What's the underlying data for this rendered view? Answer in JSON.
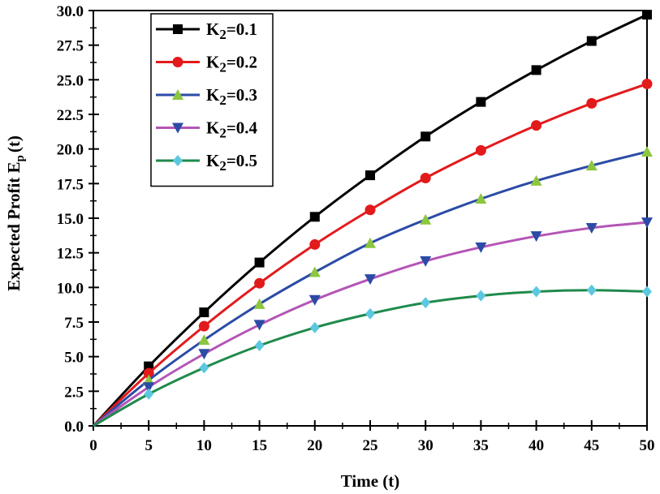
{
  "chart_data": {
    "type": "line",
    "title": "",
    "xlabel": "Time (t)",
    "ylabel_main": "Expected Profit E",
    "ylabel_sub": "p",
    "ylabel_tail": "(t)",
    "xlim": [
      0,
      50
    ],
    "ylim": [
      0,
      30
    ],
    "xticks": [
      0,
      5,
      10,
      15,
      20,
      25,
      30,
      35,
      40,
      45,
      50
    ],
    "yticks": [
      0,
      2.5,
      5,
      7.5,
      10,
      12.5,
      15,
      17.5,
      20,
      22.5,
      25,
      27.5,
      30
    ],
    "xtick_labels": [
      "0",
      "5",
      "10",
      "15",
      "20",
      "25",
      "30",
      "35",
      "40",
      "45",
      "50"
    ],
    "ytick_labels": [
      "0.0",
      "2.5",
      "5.0",
      "7.5",
      "10.0",
      "12.5",
      "15.0",
      "17.5",
      "20.0",
      "22.5",
      "25.0",
      "27.5",
      "30.0"
    ],
    "grid": false,
    "legend_position": "top-left",
    "x": [
      0,
      5,
      10,
      15,
      20,
      25,
      30,
      35,
      40,
      45,
      50
    ],
    "series": [
      {
        "name": "K2=0.1",
        "label_main": "K",
        "label_sub": "2",
        "label_tail": "=0.1",
        "color": "#000000",
        "marker": "square",
        "values": [
          0,
          4.3,
          8.2,
          11.8,
          15.1,
          18.1,
          20.9,
          23.4,
          25.7,
          27.8,
          29.7
        ]
      },
      {
        "name": "K2=0.2",
        "label_main": "K",
        "label_sub": "2",
        "label_tail": "=0.2",
        "color": "#e31a1c",
        "marker": "circle",
        "values": [
          0,
          3.8,
          7.2,
          10.3,
          13.1,
          15.6,
          17.9,
          19.9,
          21.7,
          23.3,
          24.7
        ]
      },
      {
        "name": "K2=0.3",
        "label_main": "K",
        "label_sub": "2",
        "label_tail": "=0.3",
        "color": "#2b4ba6",
        "marker": "triangle-up",
        "marker_color": "#8cc63f",
        "values": [
          0,
          3.3,
          6.2,
          8.8,
          11.1,
          13.2,
          14.9,
          16.4,
          17.7,
          18.8,
          19.8
        ]
      },
      {
        "name": "K2=0.4",
        "label_main": "K",
        "label_sub": "2",
        "label_tail": "=0.4",
        "color": "#b455b6",
        "marker": "triangle-down",
        "marker_color": "#2b4ba6",
        "values": [
          0,
          2.8,
          5.2,
          7.3,
          9.1,
          10.6,
          11.9,
          12.9,
          13.7,
          14.3,
          14.7
        ]
      },
      {
        "name": "K2=0.5",
        "label_main": "K",
        "label_sub": "2",
        "label_tail": "=0.5",
        "color": "#1f8a4c",
        "marker": "diamond",
        "marker_color": "#5bc8e0",
        "values": [
          0,
          2.3,
          4.2,
          5.8,
          7.1,
          8.1,
          8.9,
          9.4,
          9.7,
          9.8,
          9.7
        ]
      }
    ]
  }
}
